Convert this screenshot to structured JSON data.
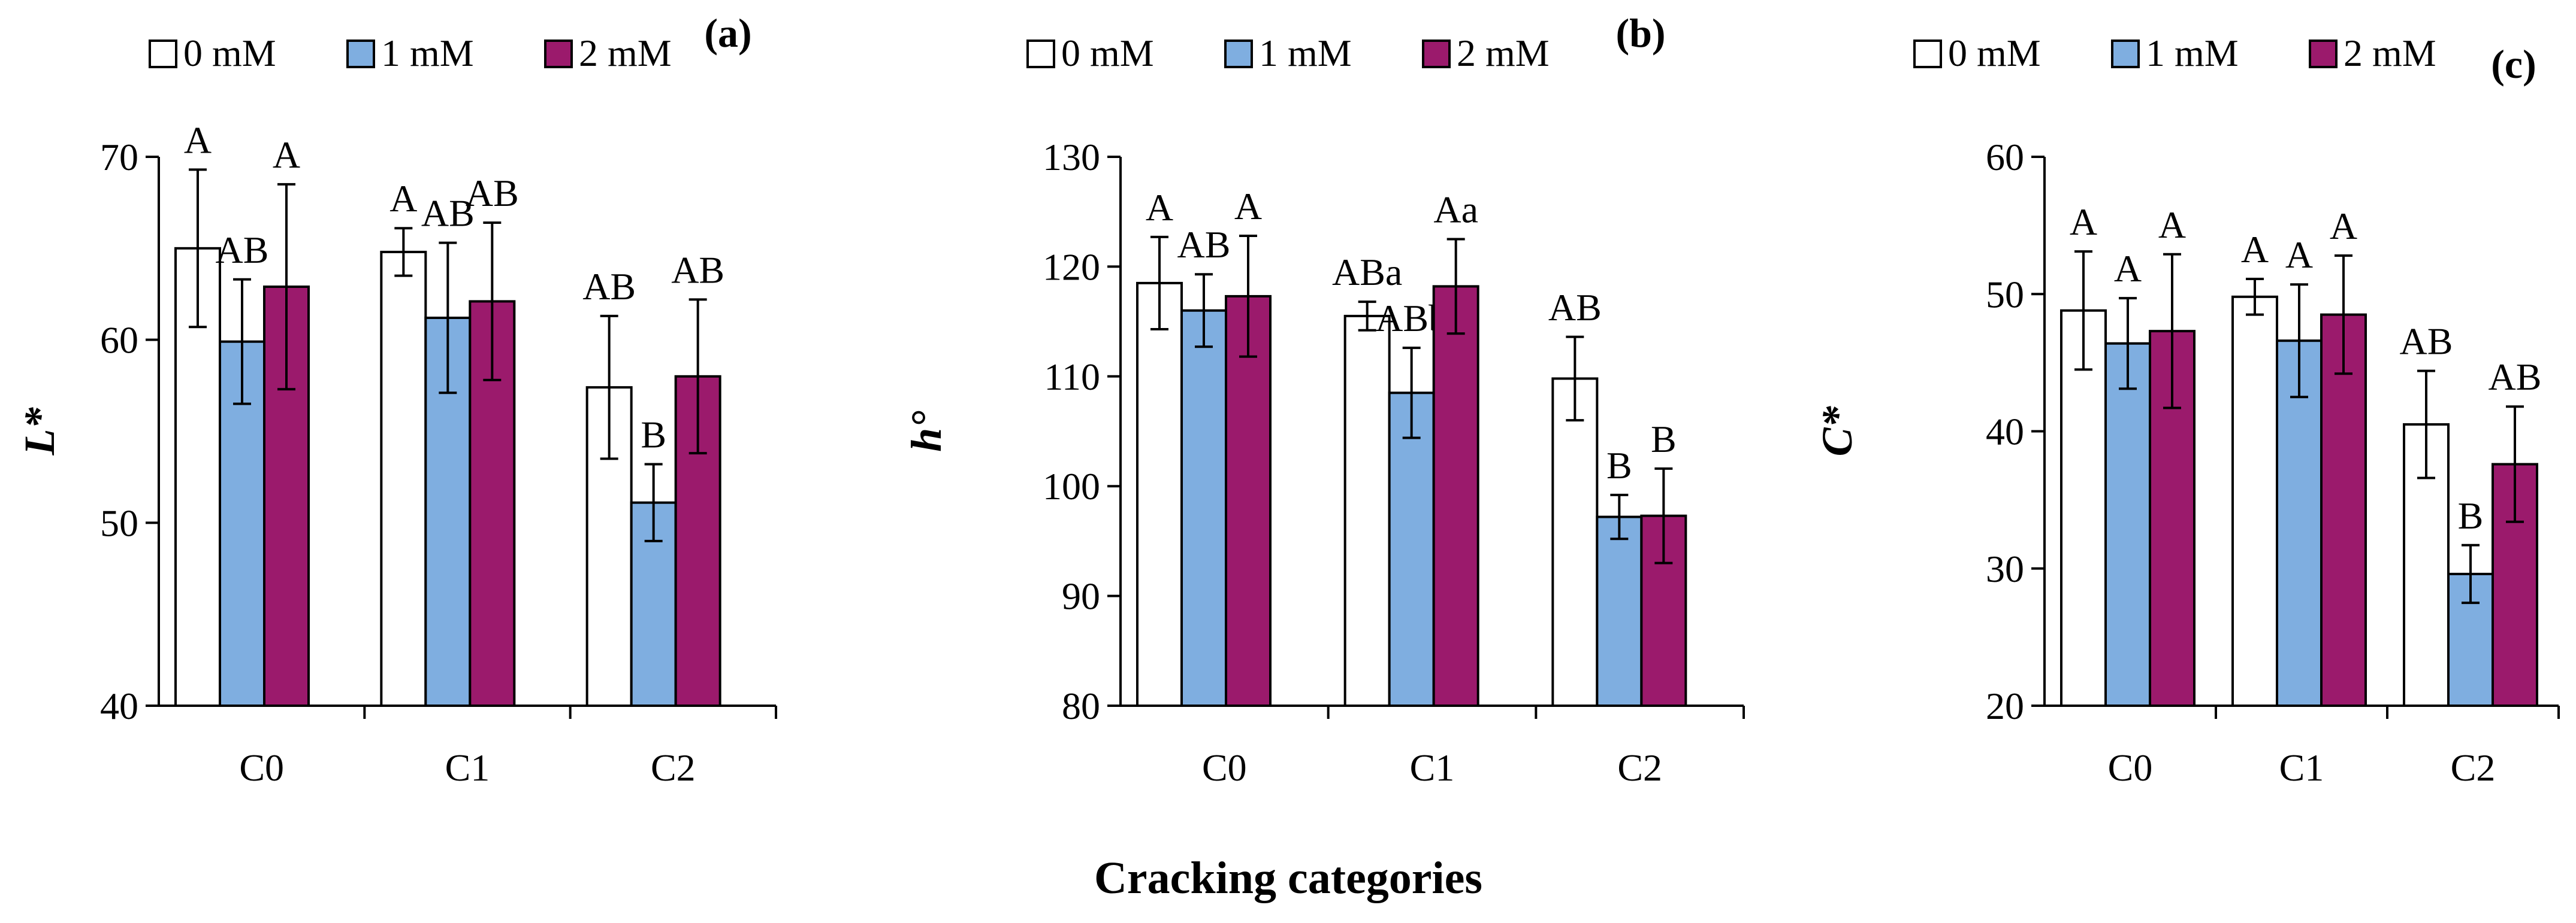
{
  "xaxis_title": "Cracking categories",
  "legend": [
    {
      "label": "0 mM",
      "color": "#ffffff"
    },
    {
      "label": "1 mM",
      "color": "#7faee0"
    },
    {
      "label": "2 mM",
      "color": "#9b1a6c"
    }
  ],
  "chart_data": [
    {
      "type": "bar",
      "panel_label": "(a)",
      "ylabel": "L*",
      "ylim": [
        40,
        70
      ],
      "yticks": [
        40,
        50,
        60,
        70
      ],
      "categories": [
        "C0",
        "C1",
        "C2"
      ],
      "series": [
        {
          "name": "0 mM",
          "values": [
            65.0,
            64.8,
            57.4
          ],
          "errors": [
            4.3,
            1.3,
            3.9
          ],
          "labels": [
            "A",
            "A",
            "AB"
          ]
        },
        {
          "name": "1 mM",
          "values": [
            59.9,
            61.2,
            51.1
          ],
          "errors": [
            3.4,
            4.1,
            2.1
          ],
          "labels": [
            "AB",
            "AB",
            "B"
          ]
        },
        {
          "name": "2 mM",
          "values": [
            62.9,
            62.1,
            58.0
          ],
          "errors": [
            5.6,
            4.3,
            4.2
          ],
          "labels": [
            "A",
            "AB",
            "AB"
          ]
        }
      ]
    },
    {
      "type": "bar",
      "panel_label": "(b)",
      "ylabel": "h°",
      "ylim": [
        80,
        130
      ],
      "yticks": [
        80,
        90,
        100,
        110,
        120,
        130
      ],
      "categories": [
        "C0",
        "C1",
        "C2"
      ],
      "series": [
        {
          "name": "0 mM",
          "values": [
            118.5,
            115.5,
            109.8
          ],
          "errors": [
            4.2,
            1.3,
            3.8
          ],
          "labels": [
            "A",
            "ABa",
            "AB"
          ]
        },
        {
          "name": "1 mM",
          "values": [
            116.0,
            108.5,
            97.2
          ],
          "errors": [
            3.3,
            4.1,
            2.0
          ],
          "labels": [
            "AB",
            "ABb",
            "B"
          ]
        },
        {
          "name": "2 mM",
          "values": [
            117.3,
            118.2,
            97.3
          ],
          "errors": [
            5.5,
            4.3,
            4.3
          ],
          "labels": [
            "A",
            "Aa",
            "B"
          ]
        }
      ]
    },
    {
      "type": "bar",
      "panel_label": "(c)",
      "ylabel": "C*",
      "ylim": [
        20,
        60
      ],
      "yticks": [
        20,
        30,
        40,
        50,
        60
      ],
      "categories": [
        "C0",
        "C1",
        "C2"
      ],
      "series": [
        {
          "name": "0 mM",
          "values": [
            48.8,
            49.8,
            40.5
          ],
          "errors": [
            4.3,
            1.3,
            3.9
          ],
          "labels": [
            "A",
            "A",
            "AB"
          ]
        },
        {
          "name": "1 mM",
          "values": [
            46.4,
            46.6,
            29.6
          ],
          "errors": [
            3.3,
            4.1,
            2.1
          ],
          "labels": [
            "A",
            "A",
            "B"
          ]
        },
        {
          "name": "2 mM",
          "values": [
            47.3,
            48.5,
            37.6
          ],
          "errors": [
            5.6,
            4.3,
            4.2
          ],
          "labels": [
            "A",
            "A",
            "AB"
          ]
        }
      ]
    }
  ]
}
